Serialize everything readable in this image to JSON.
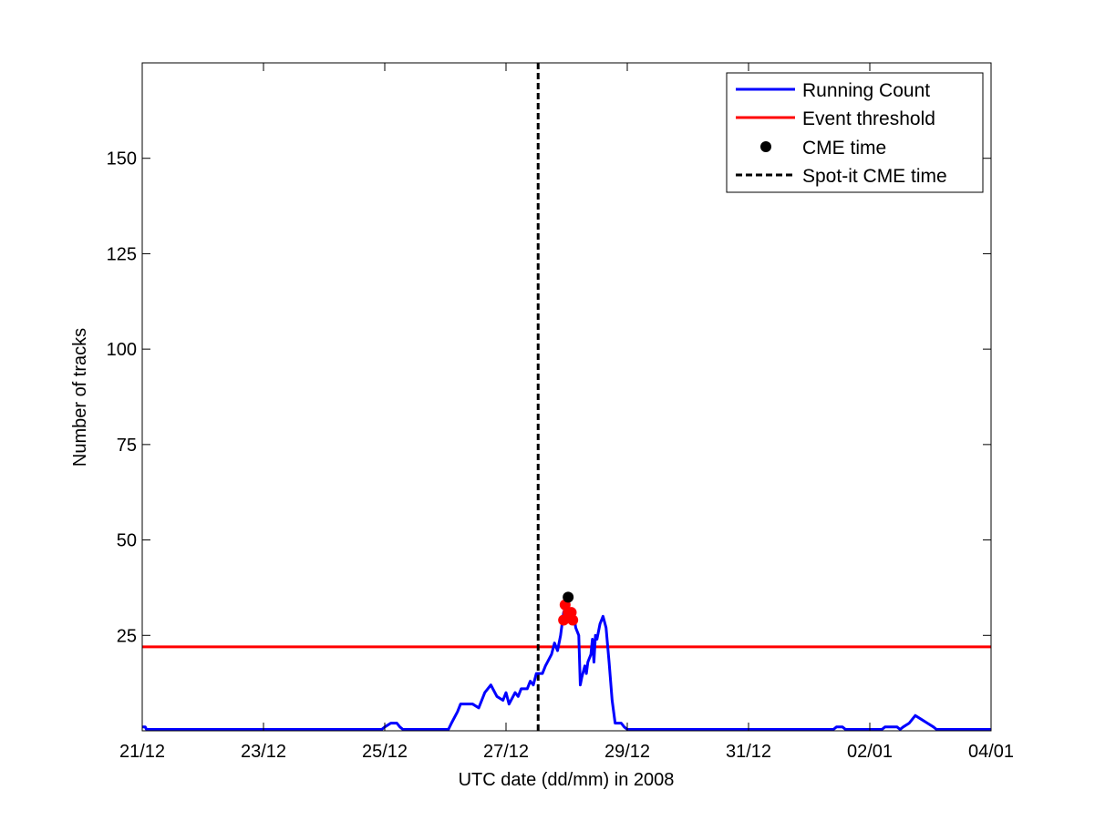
{
  "chart_data": {
    "type": "line",
    "xlabel": "UTC date (dd/mm) in 2008",
    "ylabel": "Number of tracks",
    "xlim": [
      "2008-12-21T00:00",
      "2009-01-04T00:00"
    ],
    "ylim": [
      0,
      175
    ],
    "x_ticks": [
      "21/12",
      "23/12",
      "25/12",
      "27/12",
      "29/12",
      "31/12",
      "02/01",
      "04/01"
    ],
    "y_ticks": [
      25,
      50,
      75,
      100,
      125,
      150
    ],
    "grid": false,
    "legend_position": "top-right",
    "legend": [
      {
        "label": "Running Count",
        "style": "line",
        "color": "#0000ff"
      },
      {
        "label": "Event threshold",
        "style": "line",
        "color": "#ff0000"
      },
      {
        "label": "CME time",
        "style": "marker",
        "color": "#000000"
      },
      {
        "label": "Spot-it CME time",
        "style": "dashed",
        "color": "#000000"
      }
    ],
    "series": [
      {
        "name": "Running Count",
        "color": "#0000ff",
        "points": [
          [
            "2008-12-21T00:00",
            1
          ],
          [
            "2008-12-21T01:12",
            1
          ],
          [
            "2008-12-21T01:40",
            0
          ],
          [
            "2008-12-24T22:48",
            0
          ],
          [
            "2008-12-25T00:00",
            1
          ],
          [
            "2008-12-25T02:24",
            2
          ],
          [
            "2008-12-25T04:48",
            2
          ],
          [
            "2008-12-25T06:00",
            1
          ],
          [
            "2008-12-25T07:12",
            0
          ],
          [
            "2008-12-26T01:12",
            0
          ],
          [
            "2008-12-26T02:24",
            2
          ],
          [
            "2008-12-26T04:48",
            5
          ],
          [
            "2008-12-26T06:00",
            7
          ],
          [
            "2008-12-26T08:24",
            7
          ],
          [
            "2008-12-26T10:48",
            7
          ],
          [
            "2008-12-26T13:12",
            6
          ],
          [
            "2008-12-26T15:36",
            10
          ],
          [
            "2008-12-26T18:00",
            12
          ],
          [
            "2008-12-26T20:24",
            9
          ],
          [
            "2008-12-26T22:48",
            8
          ],
          [
            "2008-12-27T00:00",
            10
          ],
          [
            "2008-12-27T01:12",
            7
          ],
          [
            "2008-12-27T03:36",
            10
          ],
          [
            "2008-12-27T04:48",
            9
          ],
          [
            "2008-12-27T06:00",
            11
          ],
          [
            "2008-12-27T08:24",
            11
          ],
          [
            "2008-12-27T09:36",
            13
          ],
          [
            "2008-12-27T10:48",
            12
          ],
          [
            "2008-12-27T12:00",
            15
          ],
          [
            "2008-12-27T14:24",
            15
          ],
          [
            "2008-12-27T15:36",
            17
          ],
          [
            "2008-12-27T18:00",
            20
          ],
          [
            "2008-12-27T19:12",
            23
          ],
          [
            "2008-12-27T20:24",
            21
          ],
          [
            "2008-12-27T21:36",
            25
          ],
          [
            "2008-12-27T22:48",
            31
          ],
          [
            "2008-12-28T00:00",
            33
          ],
          [
            "2008-12-28T01:12",
            31
          ],
          [
            "2008-12-28T02:24",
            32
          ],
          [
            "2008-12-28T03:36",
            27
          ],
          [
            "2008-12-28T04:48",
            25
          ],
          [
            "2008-12-28T05:24",
            12
          ],
          [
            "2008-12-28T06:00",
            14
          ],
          [
            "2008-12-28T07:12",
            17
          ],
          [
            "2008-12-28T07:48",
            15
          ],
          [
            "2008-12-28T08:24",
            18
          ],
          [
            "2008-12-28T09:36",
            20
          ],
          [
            "2008-12-28T10:12",
            24
          ],
          [
            "2008-12-28T10:48",
            18
          ],
          [
            "2008-12-28T11:24",
            25
          ],
          [
            "2008-12-28T12:00",
            24
          ],
          [
            "2008-12-28T13:12",
            28
          ],
          [
            "2008-12-28T14:24",
            30
          ],
          [
            "2008-12-28T15:36",
            27
          ],
          [
            "2008-12-28T16:48",
            18
          ],
          [
            "2008-12-28T18:00",
            8
          ],
          [
            "2008-12-28T19:12",
            2
          ],
          [
            "2008-12-28T21:36",
            2
          ],
          [
            "2008-12-28T22:48",
            1
          ],
          [
            "2008-12-29T00:00",
            0
          ],
          [
            "2009-01-01T09:36",
            0
          ],
          [
            "2009-01-01T10:48",
            1
          ],
          [
            "2009-01-01T13:12",
            1
          ],
          [
            "2009-01-01T14:24",
            0
          ],
          [
            "2009-01-02T04:48",
            0
          ],
          [
            "2009-01-02T06:00",
            1
          ],
          [
            "2009-01-02T10:48",
            1
          ],
          [
            "2009-01-02T12:00",
            0
          ],
          [
            "2009-01-02T13:12",
            1
          ],
          [
            "2009-01-02T15:36",
            2
          ],
          [
            "2009-01-02T16:48",
            3
          ],
          [
            "2009-01-02T18:00",
            4
          ],
          [
            "2009-01-02T20:24",
            3
          ],
          [
            "2009-01-02T22:48",
            2
          ],
          [
            "2009-01-03T01:12",
            1
          ],
          [
            "2009-01-03T02:24",
            0
          ],
          [
            "2009-01-04T00:00",
            0
          ]
        ]
      },
      {
        "name": "Event threshold",
        "color": "#ff0000",
        "points": [
          [
            "2008-12-21T00:00",
            22
          ],
          [
            "2009-01-04T00:00",
            22
          ]
        ]
      }
    ],
    "event_points": {
      "color": "#ff0000",
      "points": [
        [
          "2008-12-27T22:48",
          29
        ],
        [
          "2008-12-27T23:24",
          33
        ],
        [
          "2008-12-28T00:36",
          31
        ],
        [
          "2008-12-28T01:12",
          30
        ],
        [
          "2008-12-28T01:48",
          31
        ],
        [
          "2008-12-28T02:24",
          29
        ]
      ]
    },
    "cme_time": {
      "x": "2008-12-28T00:36",
      "y": 35,
      "color": "#000000"
    },
    "spot_it_cme_time": {
      "x": "2008-12-27T12:43",
      "color": "#000000"
    }
  }
}
